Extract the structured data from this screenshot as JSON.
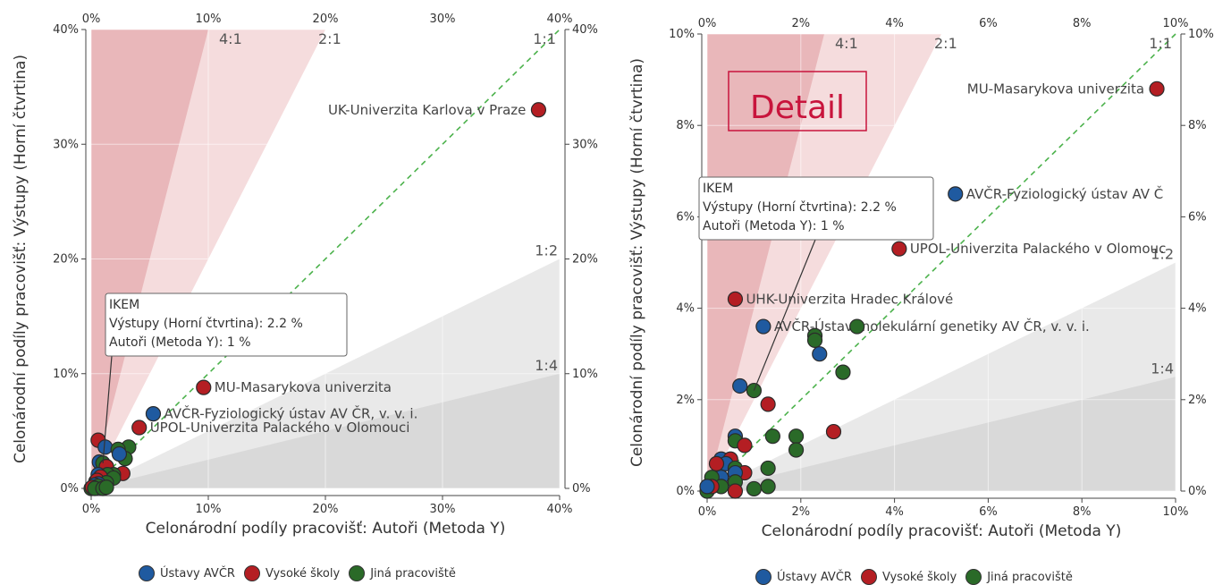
{
  "colors": {
    "avcr": "#1f5aa0",
    "vs": "#b41e23",
    "jina": "#2a6a28",
    "ratio_4_1": "#e9b7ba",
    "ratio_2_1": "#f5dcdd",
    "ratio_1_2": "#e9e9e9",
    "ratio_1_4": "#d9d9d9",
    "diagonal": "#4cb24c",
    "detail": "#c8143c"
  },
  "legend": [
    {
      "key": "avcr",
      "label": "Ústavy AVČR"
    },
    {
      "key": "vs",
      "label": "Vysoké školy"
    },
    {
      "key": "jina",
      "label": "Jiná pracoviště"
    }
  ],
  "chart_data": [
    {
      "type": "scatter",
      "xlabel": "Celonárodní podíly pracovišť: Autoři (Metoda Y)",
      "ylabel": "Celonárodní podíly pracovišť: Výstupy (Horní čtvrtina)",
      "xlim": [
        0,
        40
      ],
      "ylim": [
        0,
        40
      ],
      "ticks": [
        0,
        10,
        20,
        30,
        40
      ],
      "tick_labels": [
        "0%",
        "10%",
        "20%",
        "30%",
        "40%"
      ],
      "ratio_labels": {
        "r41": "4:1",
        "r21": "2:1",
        "r11": "1:1",
        "r12": "1:2",
        "r14": "1:4"
      },
      "tooltip": {
        "lines": [
          "IKEM",
          "Výstupy (Horní čtvrtina): 2.2 %",
          "Autoři (Metoda Y): 1 %"
        ],
        "target": [
          1,
          2.2
        ]
      },
      "annotations": [
        {
          "text": "UK-Univerzita Karlova v Praze",
          "x": 38.2,
          "y": 33.0,
          "side": "left"
        },
        {
          "text": "MU-Masarykova univerzita",
          "x": 9.6,
          "y": 8.8,
          "side": "right"
        },
        {
          "text": "AVČR-Fyziologický ústav AV ČR, v. v. i.",
          "x": 5.3,
          "y": 6.5,
          "side": "right"
        },
        {
          "text": "UPOL-Univerzita Palackého v Olomouci",
          "x": 4.1,
          "y": 5.3,
          "side": "right"
        }
      ],
      "points": [
        {
          "x": 38.2,
          "y": 33.0,
          "g": "vs"
        },
        {
          "x": 9.6,
          "y": 8.8,
          "g": "vs"
        },
        {
          "x": 5.3,
          "y": 6.5,
          "g": "avcr"
        },
        {
          "x": 4.1,
          "y": 5.3,
          "g": "vs"
        },
        {
          "x": 0.6,
          "y": 4.2,
          "g": "vs"
        },
        {
          "x": 1.2,
          "y": 3.6,
          "g": "avcr"
        },
        {
          "x": 3.2,
          "y": 3.6,
          "g": "jina"
        },
        {
          "x": 2.3,
          "y": 3.4,
          "g": "jina"
        },
        {
          "x": 2.9,
          "y": 2.6,
          "g": "jina"
        },
        {
          "x": 2.4,
          "y": 3.0,
          "g": "avcr"
        },
        {
          "x": 0.7,
          "y": 2.3,
          "g": "avcr"
        },
        {
          "x": 1.0,
          "y": 2.2,
          "g": "jina"
        },
        {
          "x": 1.3,
          "y": 1.9,
          "g": "vs"
        },
        {
          "x": 2.7,
          "y": 1.3,
          "g": "vs"
        },
        {
          "x": 1.9,
          "y": 1.2,
          "g": "jina"
        },
        {
          "x": 1.4,
          "y": 1.2,
          "g": "jina"
        },
        {
          "x": 0.6,
          "y": 1.2,
          "g": "avcr"
        },
        {
          "x": 0.8,
          "y": 1.0,
          "g": "vs"
        },
        {
          "x": 1.9,
          "y": 0.9,
          "g": "jina"
        },
        {
          "x": 0.4,
          "y": 0.6,
          "g": "avcr"
        },
        {
          "x": 0.5,
          "y": 0.7,
          "g": "vs"
        },
        {
          "x": 1.3,
          "y": 0.5,
          "g": "jina"
        },
        {
          "x": 0.6,
          "y": 0.4,
          "g": "avcr"
        },
        {
          "x": 0.3,
          "y": 0.3,
          "g": "avcr"
        },
        {
          "x": 0.6,
          "y": 0.2,
          "g": "jina"
        },
        {
          "x": 0.0,
          "y": 0.0,
          "g": "jina"
        },
        {
          "x": 0.1,
          "y": 0.1,
          "g": "vs"
        },
        {
          "x": 0.3,
          "y": 0.0,
          "g": "jina"
        },
        {
          "x": 1.0,
          "y": 0.0,
          "g": "jina"
        },
        {
          "x": 1.3,
          "y": 0.1,
          "g": "jina"
        }
      ]
    },
    {
      "type": "scatter",
      "xlabel": "Celonárodní podíly pracovišť: Autoři (Metoda Y)",
      "ylabel": "Celonárodní podíly pracovišť: Výstupy (Horní čtvrtina)",
      "xlim": [
        0,
        10
      ],
      "ylim": [
        0,
        10
      ],
      "xticks": [
        0,
        2,
        4,
        6,
        8,
        10
      ],
      "xtick_labels": [
        "0%",
        "2%",
        "4%",
        "6%",
        "8%",
        "10%"
      ],
      "yticks": [
        0,
        2,
        4,
        6,
        8,
        10
      ],
      "ytick_labels": [
        "0%",
        "2%",
        "4%",
        "6%",
        "8%",
        "10%"
      ],
      "ratio_labels": {
        "r41": "4:1",
        "r21": "2:1",
        "r11": "1:1",
        "r12": "1:2",
        "r14": "1:4"
      },
      "detail_label": "Detail",
      "tooltip": {
        "lines": [
          "IKEM",
          "Výstupy (Horní čtvrtina): 2.2 %",
          "Autoři (Metoda Y): 1 %"
        ],
        "target": [
          1,
          2.2
        ]
      },
      "annotations": [
        {
          "text": "MU-Masarykova univerzita",
          "x": 9.6,
          "y": 8.8,
          "side": "left"
        },
        {
          "text": "AVČR-Fyziologický ústav AV Č",
          "x": 5.3,
          "y": 6.5,
          "side": "right"
        },
        {
          "text": "UPOL-Univerzita Palackého v Olomouc",
          "x": 4.1,
          "y": 5.3,
          "side": "right"
        },
        {
          "text": "UHK-Univerzita Hradec Králové",
          "x": 0.6,
          "y": 4.2,
          "side": "right"
        },
        {
          "text": "AVČR-Ústav molekulární genetiky AV ČR, v. v. i.",
          "x": 1.2,
          "y": 3.6,
          "side": "right"
        }
      ],
      "points": [
        {
          "x": 9.6,
          "y": 8.8,
          "g": "vs"
        },
        {
          "x": 5.3,
          "y": 6.5,
          "g": "avcr"
        },
        {
          "x": 4.1,
          "y": 5.3,
          "g": "vs"
        },
        {
          "x": 0.6,
          "y": 4.2,
          "g": "vs"
        },
        {
          "x": 1.2,
          "y": 3.6,
          "g": "avcr"
        },
        {
          "x": 3.2,
          "y": 3.6,
          "g": "jina"
        },
        {
          "x": 2.3,
          "y": 3.4,
          "g": "jina"
        },
        {
          "x": 2.3,
          "y": 3.3,
          "g": "jina"
        },
        {
          "x": 2.4,
          "y": 3.0,
          "g": "avcr"
        },
        {
          "x": 2.9,
          "y": 2.6,
          "g": "jina"
        },
        {
          "x": 0.7,
          "y": 2.3,
          "g": "avcr"
        },
        {
          "x": 1.0,
          "y": 2.2,
          "g": "jina"
        },
        {
          "x": 1.3,
          "y": 1.9,
          "g": "vs"
        },
        {
          "x": 2.7,
          "y": 1.3,
          "g": "vs"
        },
        {
          "x": 1.4,
          "y": 1.2,
          "g": "jina"
        },
        {
          "x": 1.9,
          "y": 1.2,
          "g": "jina"
        },
        {
          "x": 0.6,
          "y": 1.2,
          "g": "avcr"
        },
        {
          "x": 0.6,
          "y": 1.1,
          "g": "jina"
        },
        {
          "x": 0.8,
          "y": 1.0,
          "g": "vs"
        },
        {
          "x": 1.9,
          "y": 0.9,
          "g": "jina"
        },
        {
          "x": 0.3,
          "y": 0.7,
          "g": "avcr"
        },
        {
          "x": 0.5,
          "y": 0.7,
          "g": "vs"
        },
        {
          "x": 0.4,
          "y": 0.6,
          "g": "avcr"
        },
        {
          "x": 0.2,
          "y": 0.6,
          "g": "vs"
        },
        {
          "x": 1.3,
          "y": 0.5,
          "g": "jina"
        },
        {
          "x": 0.6,
          "y": 0.5,
          "g": "jina"
        },
        {
          "x": 0.8,
          "y": 0.4,
          "g": "vs"
        },
        {
          "x": 0.6,
          "y": 0.4,
          "g": "avcr"
        },
        {
          "x": 0.3,
          "y": 0.3,
          "g": "avcr"
        },
        {
          "x": 0.1,
          "y": 0.3,
          "g": "jina"
        },
        {
          "x": 0.6,
          "y": 0.2,
          "g": "jina"
        },
        {
          "x": 0.3,
          "y": 0.1,
          "g": "jina"
        },
        {
          "x": 1.3,
          "y": 0.1,
          "g": "jina"
        },
        {
          "x": 0.6,
          "y": 0.0,
          "g": "vs"
        },
        {
          "x": 0.0,
          "y": 0.0,
          "g": "jina"
        },
        {
          "x": 0.1,
          "y": 0.1,
          "g": "vs"
        },
        {
          "x": 1.0,
          "y": 0.05,
          "g": "jina"
        },
        {
          "x": 0.0,
          "y": 0.1,
          "g": "avcr"
        }
      ]
    }
  ]
}
